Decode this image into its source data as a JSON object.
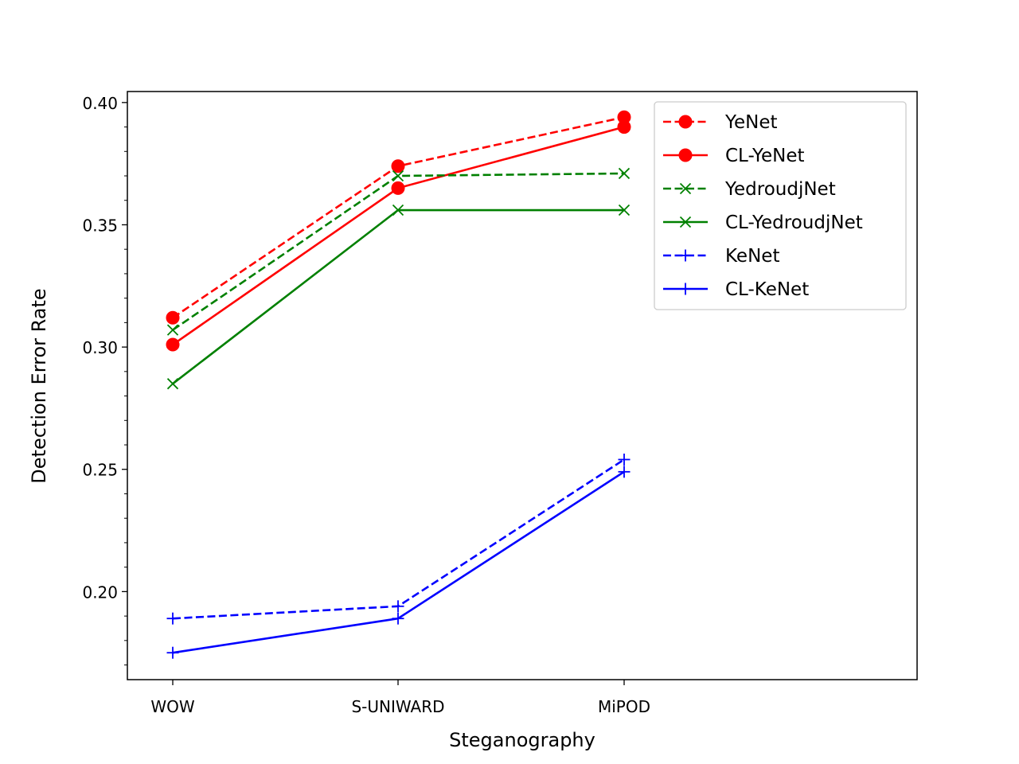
{
  "chart_data": {
    "type": "line",
    "title": "",
    "xlabel": "Steganography",
    "ylabel": "Detection Error Rate",
    "categories": [
      "WOW",
      "S-UNIWARD",
      "MiPOD"
    ],
    "ylim": [
      0.164,
      0.4045
    ],
    "yticks": [
      0.2,
      0.25,
      0.3,
      0.35,
      0.4
    ],
    "ytick_labels": [
      "0.20",
      "0.25",
      "0.30",
      "0.35",
      "0.40"
    ],
    "minor_ytick_step": 0.01,
    "grid": false,
    "legend_position": "top-right",
    "series": [
      {
        "name": "YeNet",
        "values": [
          0.312,
          0.374,
          0.394
        ],
        "color": "#ff0000",
        "dash": "dashed",
        "marker": "circle"
      },
      {
        "name": "CL-YeNet",
        "values": [
          0.301,
          0.365,
          0.39
        ],
        "color": "#ff0000",
        "dash": "solid",
        "marker": "circle"
      },
      {
        "name": "YedroudjNet",
        "values": [
          0.307,
          0.37,
          0.371
        ],
        "color": "#008000",
        "dash": "dashed",
        "marker": "x"
      },
      {
        "name": "CL-YedroudjNet",
        "values": [
          0.285,
          0.356,
          0.356
        ],
        "color": "#008000",
        "dash": "solid",
        "marker": "x"
      },
      {
        "name": "KeNet",
        "values": [
          0.189,
          0.194,
          0.254
        ],
        "color": "#0000ff",
        "dash": "dashed",
        "marker": "plus"
      },
      {
        "name": "CL-KeNet",
        "values": [
          0.175,
          0.189,
          0.249
        ],
        "color": "#0000ff",
        "dash": "solid",
        "marker": "plus"
      }
    ]
  }
}
